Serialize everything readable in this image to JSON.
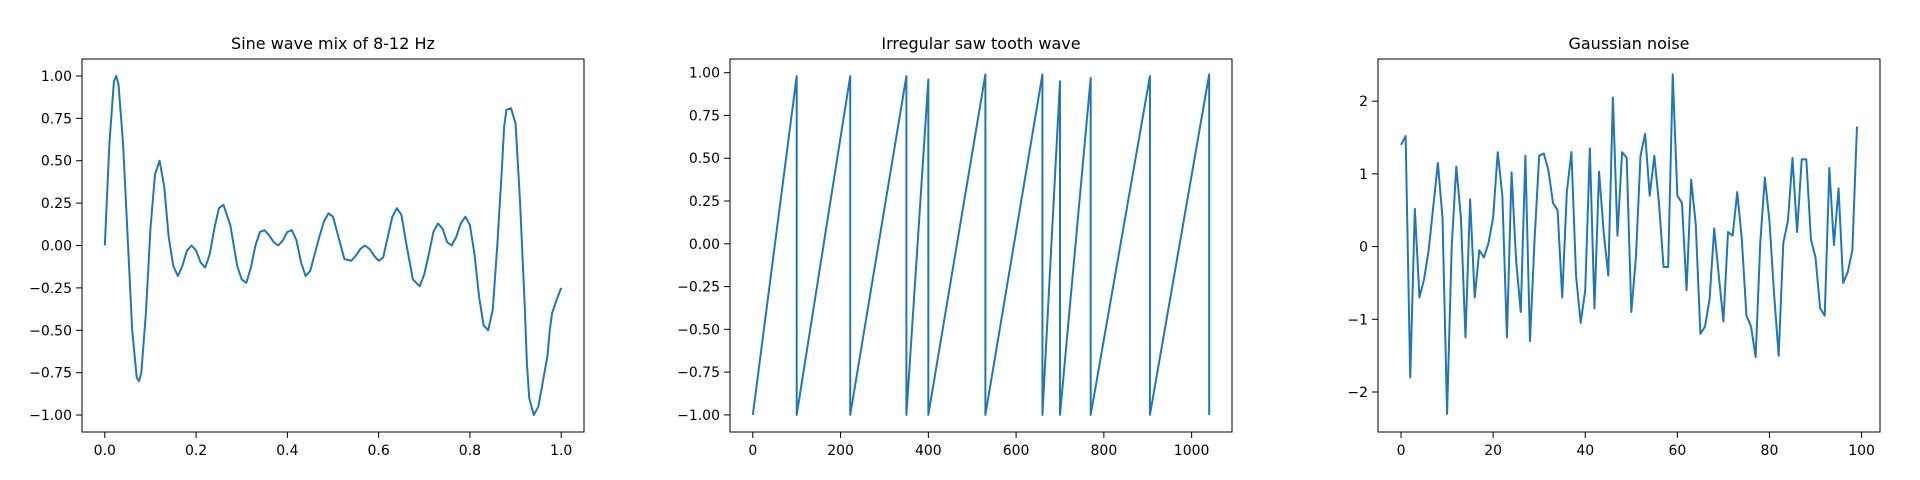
{
  "chart_data": [
    {
      "type": "line",
      "title": "Sine wave mix of 8-12 Hz",
      "xlabel": "",
      "ylabel": "",
      "xlim": [
        -0.05,
        1.05
      ],
      "ylim": [
        -1.1,
        1.1
      ],
      "xticks": [
        0.0,
        0.2,
        0.4,
        0.6,
        0.8,
        1.0
      ],
      "xtick_labels": [
        "0.0",
        "0.2",
        "0.4",
        "0.6",
        "0.8",
        "1.0"
      ],
      "yticks": [
        -1.0,
        -0.75,
        -0.5,
        -0.25,
        0.0,
        0.25,
        0.5,
        0.75,
        1.0
      ],
      "ytick_labels": [
        "−1.00",
        "−0.75",
        "−0.50",
        "−0.25",
        "0.00",
        "0.25",
        "0.50",
        "0.75",
        "1.00"
      ],
      "grid": false,
      "series": [
        {
          "color": "#1f77b4",
          "x": [
            0.0,
            0.01,
            0.02,
            0.025,
            0.03,
            0.04,
            0.05,
            0.06,
            0.07,
            0.075,
            0.08,
            0.09,
            0.1,
            0.11,
            0.12,
            0.13,
            0.14,
            0.15,
            0.16,
            0.17,
            0.18,
            0.19,
            0.2,
            0.21,
            0.22,
            0.23,
            0.24,
            0.25,
            0.26,
            0.275,
            0.29,
            0.3,
            0.31,
            0.32,
            0.33,
            0.34,
            0.35,
            0.36,
            0.37,
            0.38,
            0.39,
            0.4,
            0.41,
            0.42,
            0.43,
            0.44,
            0.45,
            0.46,
            0.47,
            0.48,
            0.49,
            0.5,
            0.51,
            0.525,
            0.54,
            0.55,
            0.56,
            0.57,
            0.58,
            0.59,
            0.6,
            0.61,
            0.62,
            0.63,
            0.64,
            0.65,
            0.66,
            0.675,
            0.69,
            0.7,
            0.71,
            0.72,
            0.73,
            0.74,
            0.75,
            0.76,
            0.77,
            0.78,
            0.79,
            0.8,
            0.81,
            0.82,
            0.83,
            0.84,
            0.85,
            0.86,
            0.87,
            0.875,
            0.88,
            0.89,
            0.9,
            0.91,
            0.92,
            0.925,
            0.93,
            0.94,
            0.95,
            0.96,
            0.97,
            0.975,
            0.98,
            0.99,
            1.0
          ],
          "y": [
            0.0,
            0.6,
            0.97,
            1.0,
            0.95,
            0.6,
            0.05,
            -0.5,
            -0.78,
            -0.8,
            -0.75,
            -0.4,
            0.1,
            0.42,
            0.5,
            0.35,
            0.05,
            -0.12,
            -0.18,
            -0.12,
            -0.03,
            0.0,
            -0.03,
            -0.1,
            -0.13,
            -0.05,
            0.1,
            0.22,
            0.24,
            0.12,
            -0.12,
            -0.2,
            -0.22,
            -0.13,
            0.0,
            0.08,
            0.09,
            0.06,
            0.02,
            0.0,
            0.03,
            0.08,
            0.09,
            0.03,
            -0.1,
            -0.18,
            -0.15,
            -0.05,
            0.05,
            0.14,
            0.19,
            0.17,
            0.07,
            -0.08,
            -0.09,
            -0.06,
            -0.02,
            0.0,
            -0.02,
            -0.06,
            -0.09,
            -0.07,
            0.05,
            0.17,
            0.22,
            0.18,
            0.02,
            -0.2,
            -0.24,
            -0.17,
            -0.05,
            0.08,
            0.13,
            0.1,
            0.02,
            0.0,
            0.05,
            0.13,
            0.17,
            0.12,
            -0.05,
            -0.3,
            -0.47,
            -0.5,
            -0.38,
            0.0,
            0.45,
            0.7,
            0.8,
            0.81,
            0.72,
            0.25,
            -0.35,
            -0.7,
            -0.9,
            -1.0,
            -0.95,
            -0.8,
            -0.65,
            -0.5,
            -0.4,
            -0.32,
            -0.25
          ]
        }
      ]
    },
    {
      "type": "line",
      "title": "Irregular saw tooth wave",
      "xlabel": "",
      "ylabel": "",
      "xlim": [
        -52,
        1092
      ],
      "ylim": [
        -1.1,
        1.08
      ],
      "xticks": [
        0,
        200,
        400,
        600,
        800,
        1000
      ],
      "xtick_labels": [
        "0",
        "200",
        "400",
        "600",
        "800",
        "1000"
      ],
      "yticks": [
        -1.0,
        -0.75,
        -0.5,
        -0.25,
        0.0,
        0.25,
        0.5,
        0.75,
        1.0
      ],
      "ytick_labels": [
        "−1.00",
        "−0.75",
        "−0.50",
        "−0.25",
        "0.00",
        "0.25",
        "0.50",
        "0.75",
        "1.00"
      ],
      "grid": false,
      "series": [
        {
          "color": "#1f77b4",
          "x": [
            0,
            100,
            100,
            222,
            222,
            350,
            350,
            400,
            400,
            530,
            530,
            660,
            660,
            700,
            700,
            770,
            770,
            905,
            905,
            1040,
            1040
          ],
          "y": [
            -1.0,
            0.98,
            -1.0,
            0.98,
            -1.0,
            0.98,
            -1.0,
            0.96,
            -1.0,
            0.99,
            -1.0,
            0.99,
            -1.0,
            0.95,
            -1.0,
            0.97,
            -1.0,
            0.98,
            -1.0,
            0.99,
            -1.0
          ]
        }
      ]
    },
    {
      "type": "line",
      "title": "Gaussian noise",
      "xlabel": "",
      "ylabel": "",
      "xlim": [
        -5,
        104
      ],
      "ylim": [
        -2.55,
        2.58
      ],
      "xticks": [
        0,
        20,
        40,
        60,
        80,
        100
      ],
      "xtick_labels": [
        "0",
        "20",
        "40",
        "60",
        "80",
        "100"
      ],
      "yticks": [
        -2,
        -1,
        0,
        1,
        2
      ],
      "ytick_labels": [
        "−2",
        "−1",
        "0",
        "1",
        "2"
      ],
      "grid": false,
      "series": [
        {
          "color": "#1f77b4",
          "x": [
            0,
            1,
            2,
            3,
            4,
            5,
            6,
            7,
            8,
            9,
            10,
            11,
            12,
            13,
            14,
            15,
            16,
            17,
            18,
            19,
            20,
            21,
            22,
            23,
            24,
            25,
            26,
            27,
            28,
            29,
            30,
            31,
            32,
            33,
            34,
            35,
            36,
            37,
            38,
            39,
            40,
            41,
            42,
            43,
            44,
            45,
            46,
            47,
            48,
            49,
            50,
            51,
            52,
            53,
            54,
            55,
            56,
            57,
            58,
            59,
            60,
            61,
            62,
            63,
            64,
            65,
            66,
            67,
            68,
            69,
            70,
            71,
            72,
            73,
            74,
            75,
            76,
            77,
            78,
            79,
            80,
            81,
            82,
            83,
            84,
            85,
            86,
            87,
            88,
            89,
            90,
            91,
            92,
            93,
            94,
            95,
            96,
            97,
            98,
            99
          ],
          "y": [
            1.4,
            1.52,
            -1.8,
            0.52,
            -0.7,
            -0.45,
            -0.05,
            0.55,
            1.15,
            0.4,
            -2.3,
            0.0,
            1.1,
            0.4,
            -1.25,
            0.65,
            -0.7,
            -0.05,
            -0.15,
            0.05,
            0.4,
            1.3,
            0.7,
            -1.25,
            1.02,
            -0.2,
            -0.9,
            1.25,
            -1.3,
            0.1,
            1.25,
            1.28,
            1.05,
            0.6,
            0.5,
            -0.7,
            0.75,
            1.3,
            -0.4,
            -1.05,
            -0.6,
            1.35,
            -0.85,
            1.03,
            0.2,
            -0.4,
            2.05,
            0.15,
            1.3,
            1.22,
            -0.9,
            -0.15,
            1.25,
            1.55,
            0.7,
            1.25,
            0.6,
            -0.28,
            -0.28,
            2.37,
            0.7,
            0.6,
            -0.6,
            0.92,
            0.3,
            -1.2,
            -1.1,
            -0.72,
            0.25,
            -0.4,
            -1.03,
            0.2,
            0.15,
            0.75,
            0.1,
            -0.95,
            -1.1,
            -1.52,
            0.05,
            0.95,
            0.35,
            -0.65,
            -1.5,
            0.05,
            0.35,
            1.22,
            0.2,
            1.2,
            1.2,
            0.1,
            -0.15,
            -0.85,
            -0.95,
            1.08,
            0.02,
            0.8,
            -0.5,
            -0.35,
            -0.05,
            1.65
          ]
        }
      ]
    }
  ]
}
